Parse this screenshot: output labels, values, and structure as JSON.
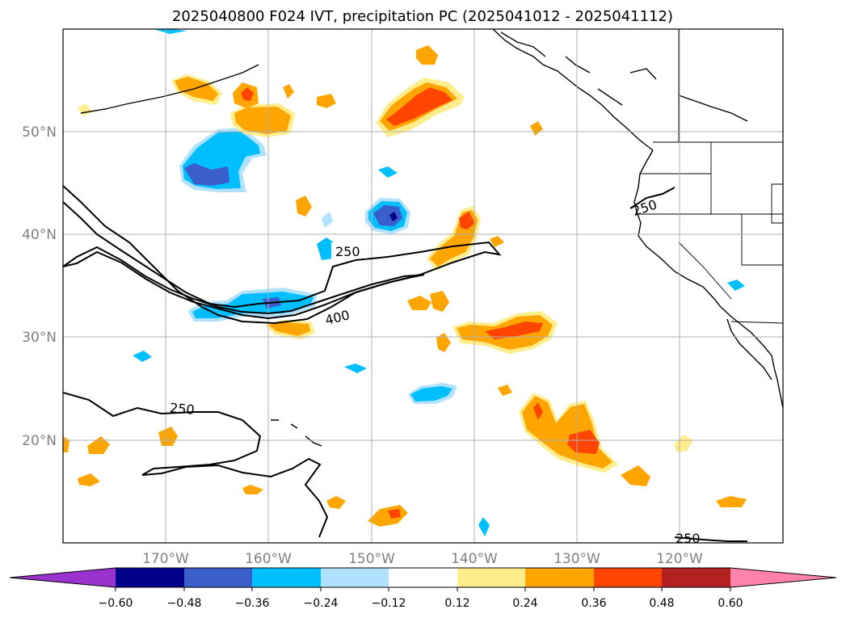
{
  "title": "2025040800 F024 IVT, precipitation PC (2025041012 - 2025041112)",
  "lat_labels": [
    "50°N",
    "40°N",
    "30°N",
    "20°N"
  ],
  "lon_labels": [
    "170°W",
    "160°W",
    "150°W",
    "140°W",
    "130°W",
    "120°W"
  ],
  "colorbar": {
    "ticks": [
      "−0.60",
      "−0.48",
      "−0.36",
      "−0.24",
      "−0.12",
      "0.12",
      "0.24",
      "0.36",
      "0.48",
      "0.60"
    ],
    "colors": {
      "under": "#9a32cd",
      "bin_1": "#00008b",
      "bin_2": "#3a5fcd",
      "bin_3": "#00bfff",
      "bin_4": "#b0e2ff",
      "bin_5": "#ffffff",
      "bin_6": "#ffec8b",
      "bin_7": "#ffa500",
      "bin_8": "#ff4500",
      "bin_9": "#b22222",
      "over": "#ff82ab"
    }
  },
  "contour_labels": {
    "a": "250",
    "b": "400",
    "c": "250",
    "d": "250",
    "e": "250"
  }
}
